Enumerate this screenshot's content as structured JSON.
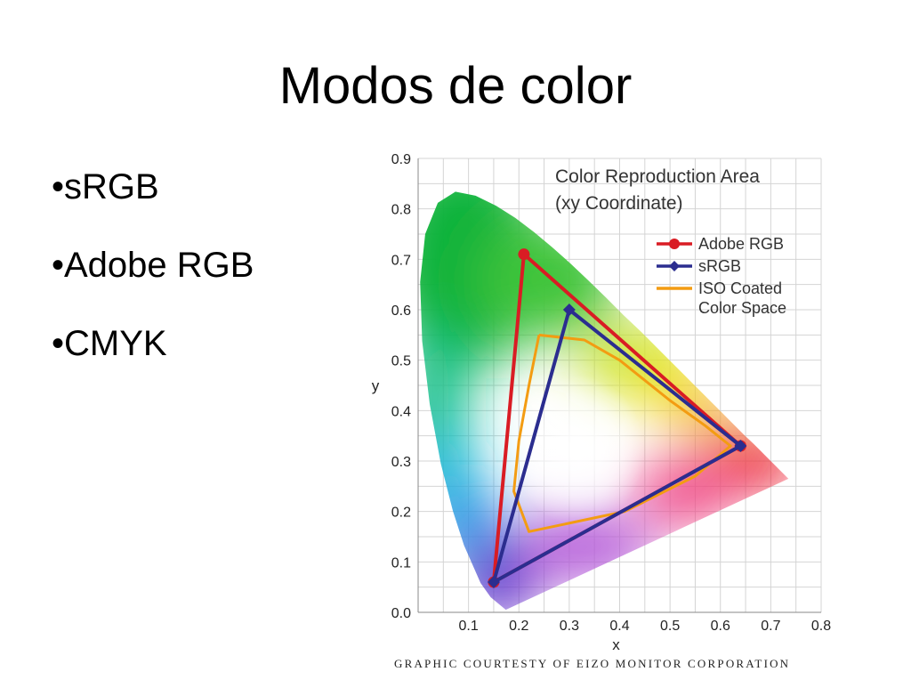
{
  "slide": {
    "title": "Modos de color",
    "bullets": [
      "•sRGB",
      "•Adobe RGB",
      "•CMYK"
    ],
    "credit": "GRAPHIC COURTESTY OF EIZO MONITOR CORPORATION"
  },
  "chart_data": {
    "type": "scatter",
    "title": "Color Reproduction Area",
    "subtitle": "(xy Coordinate)",
    "xlabel": "x",
    "ylabel": "y",
    "xlim": [
      0.0,
      0.8
    ],
    "ylim": [
      0.0,
      0.9
    ],
    "xticks": [
      0.1,
      0.2,
      0.3,
      0.4,
      0.5,
      0.6,
      0.7,
      0.8
    ],
    "yticks": [
      0.0,
      0.1,
      0.2,
      0.3,
      0.4,
      0.5,
      0.6,
      0.7,
      0.8,
      0.9
    ],
    "grid": true,
    "legend_position": "top-right",
    "background": "CIE 1931 chromaticity diagram",
    "spectral_locus": [
      [
        0.174,
        0.005
      ],
      [
        0.144,
        0.03
      ],
      [
        0.124,
        0.058
      ],
      [
        0.091,
        0.133
      ],
      [
        0.069,
        0.201
      ],
      [
        0.045,
        0.295
      ],
      [
        0.023,
        0.413
      ],
      [
        0.008,
        0.538
      ],
      [
        0.004,
        0.655
      ],
      [
        0.014,
        0.75
      ],
      [
        0.039,
        0.812
      ],
      [
        0.074,
        0.834
      ],
      [
        0.114,
        0.826
      ],
      [
        0.155,
        0.806
      ],
      [
        0.193,
        0.782
      ],
      [
        0.23,
        0.754
      ],
      [
        0.266,
        0.724
      ],
      [
        0.302,
        0.692
      ],
      [
        0.337,
        0.659
      ],
      [
        0.373,
        0.624
      ],
      [
        0.408,
        0.589
      ],
      [
        0.444,
        0.555
      ],
      [
        0.479,
        0.52
      ],
      [
        0.513,
        0.486
      ],
      [
        0.545,
        0.454
      ],
      [
        0.575,
        0.424
      ],
      [
        0.602,
        0.397
      ],
      [
        0.627,
        0.372
      ],
      [
        0.648,
        0.351
      ],
      [
        0.666,
        0.334
      ],
      [
        0.68,
        0.32
      ],
      [
        0.692,
        0.308
      ],
      [
        0.735,
        0.265
      ]
    ],
    "series": [
      {
        "name": "Adobe RGB",
        "color": "#d91c24",
        "marker": "circle",
        "points": [
          [
            0.64,
            0.33
          ],
          [
            0.21,
            0.71
          ],
          [
            0.15,
            0.06
          ]
        ]
      },
      {
        "name": "sRGB",
        "color": "#2b2d8f",
        "marker": "diamond",
        "points": [
          [
            0.64,
            0.33
          ],
          [
            0.3,
            0.6
          ],
          [
            0.15,
            0.06
          ]
        ]
      },
      {
        "name_lines": [
          "ISO Coated",
          "Color Space"
        ],
        "color": "#f39c12",
        "marker": "none",
        "points": [
          [
            0.24,
            0.55
          ],
          [
            0.33,
            0.54
          ],
          [
            0.4,
            0.5
          ],
          [
            0.5,
            0.42
          ],
          [
            0.57,
            0.37
          ],
          [
            0.62,
            0.33
          ],
          [
            0.55,
            0.27
          ],
          [
            0.41,
            0.2
          ],
          [
            0.22,
            0.16
          ],
          [
            0.19,
            0.24
          ],
          [
            0.2,
            0.34
          ],
          [
            0.22,
            0.45
          ],
          [
            0.24,
            0.55
          ]
        ]
      }
    ]
  }
}
